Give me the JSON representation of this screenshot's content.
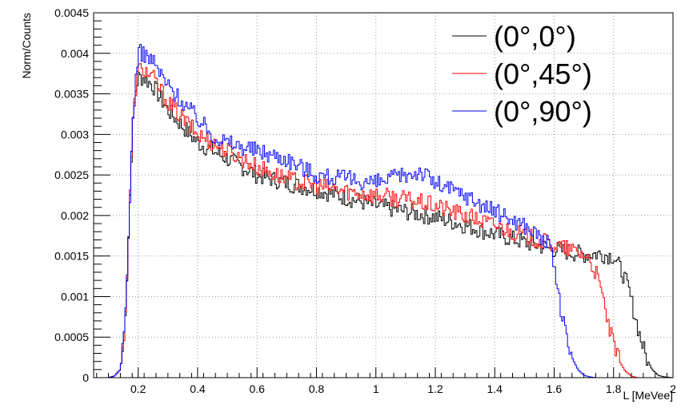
{
  "chart_data": {
    "type": "line",
    "title": "",
    "xlabel": "L [MeVee]",
    "ylabel": "Norm/Counts",
    "xlim": [
      0.05,
      2.0
    ],
    "ylim": [
      0,
      0.0045
    ],
    "x_ticks": [
      0.2,
      0.4,
      0.6,
      0.8,
      1.0,
      1.2,
      1.4,
      1.6,
      1.8,
      2.0
    ],
    "x_tick_labels": [
      "0.2",
      "0.4",
      "0.6",
      "0.8",
      "1",
      "1.2",
      "1.4",
      "1.6",
      "1.8",
      "2"
    ],
    "y_ticks": [
      0,
      0.0005,
      0.001,
      0.0015,
      0.002,
      0.0025,
      0.003,
      0.0035,
      0.004,
      0.0045
    ],
    "y_tick_labels": [
      "0",
      "0.0005",
      "0.001",
      "0.0015",
      "0.002",
      "0.0025",
      "0.003",
      "0.0035",
      "0.004",
      "0.0045"
    ],
    "grid": true,
    "legend_position": "top-right",
    "series": [
      {
        "name": "(0°,0°)",
        "color": "#000000",
        "x": [
          0.1,
          0.12,
          0.14,
          0.15,
          0.16,
          0.17,
          0.18,
          0.19,
          0.2,
          0.22,
          0.25,
          0.3,
          0.35,
          0.4,
          0.45,
          0.5,
          0.6,
          0.7,
          0.8,
          0.9,
          1.0,
          1.1,
          1.2,
          1.3,
          1.4,
          1.5,
          1.6,
          1.7,
          1.75,
          1.8,
          1.83,
          1.85,
          1.87,
          1.89,
          1.91,
          1.93,
          1.95,
          1.97,
          2.0
        ],
        "y": [
          0,
          2e-05,
          0.0001,
          0.0004,
          0.001,
          0.002,
          0.003,
          0.0035,
          0.0037,
          0.0037,
          0.0036,
          0.0033,
          0.0031,
          0.0029,
          0.0028,
          0.0027,
          0.0025,
          0.0024,
          0.00232,
          0.00222,
          0.00212,
          0.00205,
          0.00198,
          0.00188,
          0.00177,
          0.00167,
          0.00158,
          0.00152,
          0.00153,
          0.0015,
          0.0013,
          0.0011,
          0.0008,
          0.0005,
          0.00025,
          0.0001,
          3e-05,
          1e-05,
          0
        ]
      },
      {
        "name": "(0°,45°)",
        "color": "#ff0000",
        "x": [
          0.1,
          0.12,
          0.14,
          0.15,
          0.16,
          0.17,
          0.18,
          0.19,
          0.2,
          0.22,
          0.25,
          0.3,
          0.35,
          0.4,
          0.45,
          0.5,
          0.6,
          0.7,
          0.8,
          0.9,
          1.0,
          1.1,
          1.2,
          1.3,
          1.4,
          1.5,
          1.6,
          1.65,
          1.7,
          1.72,
          1.74,
          1.76,
          1.78,
          1.8,
          1.82,
          1.84,
          1.86,
          1.88,
          2.0
        ],
        "y": [
          0,
          2e-05,
          0.0001,
          0.0004,
          0.001,
          0.002,
          0.003,
          0.0035,
          0.0038,
          0.0038,
          0.0037,
          0.0034,
          0.0032,
          0.003,
          0.0029,
          0.0028,
          0.0026,
          0.00245,
          0.00237,
          0.0023,
          0.00225,
          0.0022,
          0.00212,
          0.002,
          0.00188,
          0.00175,
          0.00163,
          0.00158,
          0.00152,
          0.00145,
          0.0013,
          0.00105,
          0.0007,
          0.0004,
          0.0002,
          8e-05,
          2e-05,
          0,
          0
        ]
      },
      {
        "name": "(0°,90°)",
        "color": "#0000ff",
        "x": [
          0.1,
          0.12,
          0.14,
          0.15,
          0.16,
          0.17,
          0.18,
          0.19,
          0.2,
          0.22,
          0.25,
          0.3,
          0.35,
          0.4,
          0.45,
          0.5,
          0.6,
          0.7,
          0.8,
          0.9,
          1.0,
          1.1,
          1.15,
          1.2,
          1.3,
          1.4,
          1.5,
          1.55,
          1.58,
          1.6,
          1.62,
          1.64,
          1.66,
          1.68,
          1.7,
          1.72,
          1.74,
          2.0
        ],
        "y": [
          0,
          2e-05,
          0.0001,
          0.0004,
          0.001,
          0.002,
          0.003,
          0.0036,
          0.004,
          0.004,
          0.0039,
          0.0036,
          0.0034,
          0.0032,
          0.003,
          0.0029,
          0.0028,
          0.0027,
          0.0025,
          0.00245,
          0.0024,
          0.0025,
          0.00255,
          0.0024,
          0.00225,
          0.00205,
          0.00188,
          0.00175,
          0.00165,
          0.0014,
          0.0009,
          0.0005,
          0.00025,
          0.0001,
          3e-05,
          1e-05,
          0,
          0
        ]
      }
    ]
  }
}
